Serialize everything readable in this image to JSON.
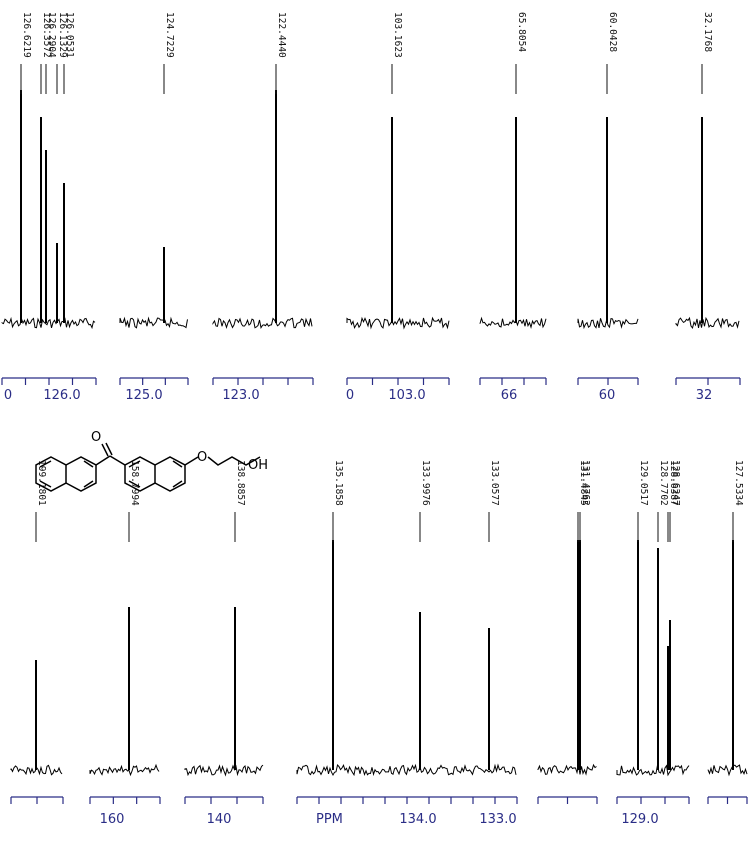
{
  "chart_data": {
    "type": "line",
    "title": "",
    "xlabel": "",
    "ylabel": "",
    "units_label": "PPM",
    "grid": false,
    "x_direction": "decreasing",
    "molecule": {
      "substituent_label": "OH",
      "heteroatom_labels": [
        "O",
        "O"
      ]
    },
    "series": [
      {
        "panels": [
          {
            "peaks": [
              {
                "ppm": 126.6219,
                "label": "126.6219",
                "height": 1.0
              },
              {
                "ppm": 126.3572,
                "label": "126.3572",
                "height": 0.98
              },
              {
                "ppm": 126.2904,
                "label": "126.2904",
                "height": 0.83
              },
              {
                "ppm": 126.1329,
                "label": "126.1329",
                "height": 0.92
              },
              {
                "ppm": 126.0531,
                "label": "126.0531",
                "height": 0.65
              }
            ],
            "ticks": [
              "0",
              "126.0"
            ]
          },
          {
            "peaks": [
              {
                "ppm": 124.7229,
                "label": "124.7229",
                "height": 1.0
              }
            ],
            "ticks": [
              "125.0"
            ]
          },
          {
            "peaks": [
              {
                "ppm": 122.444,
                "label": "122.4440",
                "height": 1.0
              }
            ],
            "ticks": [
              "123.0"
            ]
          },
          {
            "peaks": [
              {
                "ppm": 103.1623,
                "label": "103.1623",
                "height": 1.0
              }
            ],
            "ticks": [
              "0",
              "103.0"
            ]
          },
          {
            "peaks": [
              {
                "ppm": 65.8054,
                "label": "65.8054",
                "height": 1.0
              }
            ],
            "ticks": [
              "66"
            ]
          },
          {
            "peaks": [
              {
                "ppm": 60.0428,
                "label": "60.0428",
                "height": 1.0
              }
            ],
            "ticks": [
              "60"
            ]
          },
          {
            "peaks": [
              {
                "ppm": 32.1768,
                "label": "32.1768",
                "height": 1.0
              }
            ],
            "ticks": [
              "32"
            ]
          }
        ]
      },
      {
        "panels": [
          {
            "peaks": [
              {
                "ppm": 199.1801,
                "label": "199.1801",
                "height": 1.0
              }
            ],
            "ticks": []
          },
          {
            "peaks": [
              {
                "ppm": 158.7994,
                "label": "158.7994",
                "height": 1.0
              }
            ],
            "ticks": [
              "160"
            ]
          },
          {
            "peaks": [
              {
                "ppm": 138.8857,
                "label": "138.8857",
                "height": 1.0
              }
            ],
            "ticks": [
              "140"
            ]
          },
          {
            "peaks": [
              {
                "ppm": 135.1858,
                "label": "135.1858",
                "height": 1.0
              },
              {
                "ppm": 133.9976,
                "label": "133.9976",
                "height": 1.0
              },
              {
                "ppm": 133.0577,
                "label": "133.0577",
                "height": 1.0
              }
            ],
            "ticks": [
              "PPM",
              "134.0",
              "133.0"
            ]
          },
          {
            "peaks": [
              {
                "ppm": 131.4845,
                "label": "131.4845",
                "height": 1.0
              },
              {
                "ppm": 131.4762,
                "label": "131.4762",
                "height": 1.0
              }
            ],
            "ticks": []
          },
          {
            "peaks": [
              {
                "ppm": 129.0517,
                "label": "129.0517",
                "height": 1.0
              },
              {
                "ppm": 128.7702,
                "label": "128.7702",
                "height": 1.0
              },
              {
                "ppm": 128.6387,
                "label": "128.6387",
                "height": 1.0
              },
              {
                "ppm": 128.6247,
                "label": "128.6247",
                "height": 1.0
              }
            ],
            "ticks": [
              "129.0"
            ]
          },
          {
            "peaks": [
              {
                "ppm": 127.5334,
                "label": "127.5334",
                "height": 1.0
              }
            ],
            "ticks": []
          }
        ]
      }
    ]
  },
  "colors": {
    "axis": "#2a2d86",
    "trace": "#000000",
    "label": "#111111"
  }
}
